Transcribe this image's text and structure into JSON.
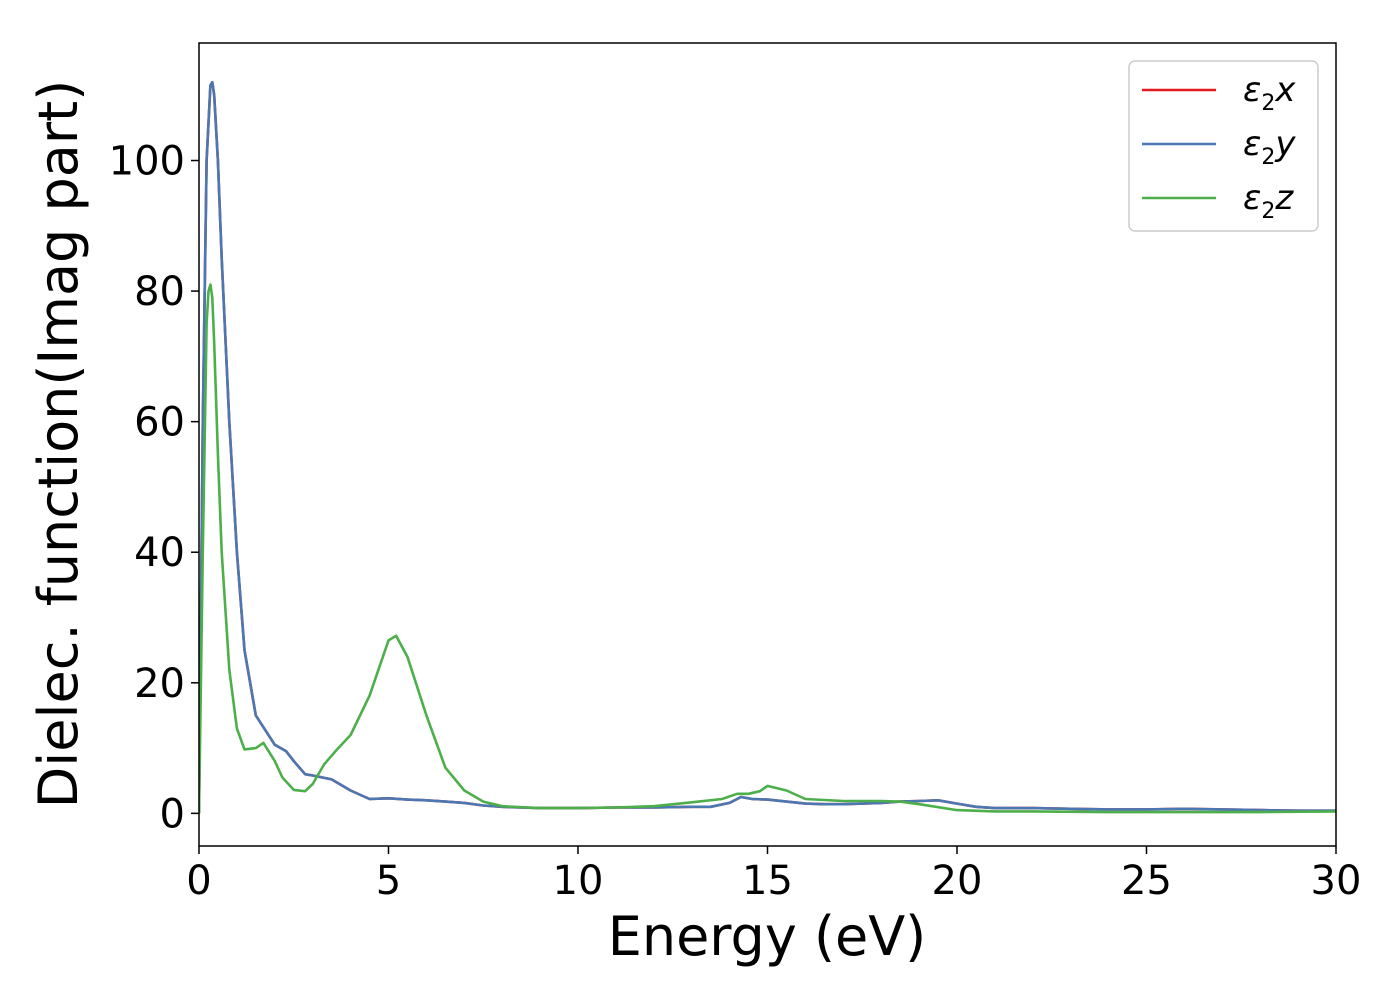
{
  "chart_data": {
    "type": "line",
    "xlabel": "Energy (eV)",
    "ylabel": "Dielec. function(Imag part)",
    "xlim": [
      0,
      30
    ],
    "ylim": [
      -5,
      118
    ],
    "xticks": [
      0,
      5,
      10,
      15,
      20,
      25,
      30
    ],
    "yticks": [
      0,
      20,
      40,
      60,
      80,
      100
    ],
    "grid": false,
    "legend_position": "top-right",
    "series": [
      {
        "name": "ε2x",
        "legend_base": "ε",
        "legend_sub": "2",
        "legend_var": "x",
        "color": "#e41a1c",
        "x": [
          0,
          0.1,
          0.2,
          0.3,
          0.35,
          0.4,
          0.5,
          0.6,
          0.8,
          1.0,
          1.2,
          1.5,
          2.0,
          2.3,
          2.5,
          2.8,
          3.0,
          3.5,
          4.0,
          4.5,
          5.0,
          5.5,
          6.0,
          6.5,
          7.0,
          7.5,
          8.0,
          8.5,
          9.0,
          10.0,
          11.0,
          12.0,
          13.0,
          13.5,
          14.0,
          14.3,
          14.6,
          15.0,
          15.5,
          16.0,
          16.5,
          17.0,
          18.0,
          18.5,
          19.0,
          19.5,
          20.0,
          20.5,
          21.0,
          22.0,
          23.0,
          24.0,
          25.0,
          26.0,
          27.0,
          28.0,
          29.0,
          30.0
        ],
        "y": [
          0,
          60,
          100,
          111.5,
          112,
          110,
          100,
          85,
          60,
          40,
          25,
          15,
          10.5,
          9.5,
          8,
          6,
          5.8,
          5.2,
          3.5,
          2.2,
          2.3,
          2.1,
          2.0,
          1.8,
          1.6,
          1.2,
          1.0,
          0.9,
          0.8,
          0.8,
          0.9,
          0.9,
          1.0,
          1.0,
          1.6,
          2.5,
          2.2,
          2.1,
          1.8,
          1.5,
          1.4,
          1.4,
          1.6,
          1.8,
          1.9,
          2.0,
          1.5,
          1.0,
          0.8,
          0.8,
          0.7,
          0.6,
          0.6,
          0.7,
          0.6,
          0.5,
          0.4,
          0.4
        ]
      },
      {
        "name": "ε2y",
        "legend_base": "ε",
        "legend_sub": "2",
        "legend_var": "y",
        "color": "#4a78b2",
        "x": [
          0,
          0.1,
          0.2,
          0.3,
          0.35,
          0.4,
          0.5,
          0.6,
          0.8,
          1.0,
          1.2,
          1.5,
          2.0,
          2.3,
          2.5,
          2.8,
          3.0,
          3.5,
          4.0,
          4.5,
          5.0,
          5.5,
          6.0,
          6.5,
          7.0,
          7.5,
          8.0,
          8.5,
          9.0,
          10.0,
          11.0,
          12.0,
          13.0,
          13.5,
          14.0,
          14.3,
          14.6,
          15.0,
          15.5,
          16.0,
          16.5,
          17.0,
          18.0,
          18.5,
          19.0,
          19.5,
          20.0,
          20.5,
          21.0,
          22.0,
          23.0,
          24.0,
          25.0,
          26.0,
          27.0,
          28.0,
          29.0,
          30.0
        ],
        "y": [
          0,
          60,
          100,
          111.5,
          112,
          110,
          100,
          85,
          60,
          40,
          25,
          15,
          10.5,
          9.5,
          8,
          6,
          5.8,
          5.2,
          3.5,
          2.2,
          2.3,
          2.1,
          2.0,
          1.8,
          1.6,
          1.2,
          1.0,
          0.9,
          0.8,
          0.8,
          0.9,
          0.9,
          1.0,
          1.0,
          1.6,
          2.5,
          2.2,
          2.1,
          1.8,
          1.5,
          1.4,
          1.4,
          1.6,
          1.8,
          1.9,
          2.0,
          1.5,
          1.0,
          0.8,
          0.8,
          0.7,
          0.6,
          0.6,
          0.7,
          0.6,
          0.5,
          0.4,
          0.4
        ]
      },
      {
        "name": "ε2z",
        "legend_base": "ε",
        "legend_sub": "2",
        "legend_var": "z",
        "color": "#4daf4a",
        "x": [
          0,
          0.1,
          0.2,
          0.25,
          0.3,
          0.35,
          0.4,
          0.5,
          0.6,
          0.8,
          1.0,
          1.2,
          1.5,
          1.7,
          2.0,
          2.2,
          2.5,
          2.8,
          3.0,
          3.3,
          3.6,
          4.0,
          4.5,
          5.0,
          5.2,
          5.5,
          6.0,
          6.5,
          7.0,
          7.5,
          8.0,
          9.0,
          10.0,
          11.0,
          12.0,
          13.0,
          13.8,
          14.2,
          14.5,
          14.8,
          15.0,
          15.5,
          16.0,
          17.0,
          18.0,
          18.5,
          19.0,
          20.0,
          21.0,
          22.0,
          24.0,
          26.0,
          28.0,
          30.0
        ],
        "y": [
          0,
          40,
          75,
          80,
          81,
          79,
          72,
          55,
          40,
          22,
          13,
          9.8,
          10,
          10.8,
          8.0,
          5.5,
          3.6,
          3.4,
          4.5,
          7.5,
          9.5,
          12,
          18,
          26.5,
          27.2,
          24,
          15,
          7,
          3.5,
          1.8,
          1.1,
          0.8,
          0.8,
          0.9,
          1.1,
          1.7,
          2.2,
          3.0,
          3.0,
          3.4,
          4.2,
          3.5,
          2.2,
          1.9,
          1.9,
          1.8,
          1.4,
          0.5,
          0.3,
          0.3,
          0.2,
          0.2,
          0.2,
          0.3
        ]
      }
    ]
  }
}
